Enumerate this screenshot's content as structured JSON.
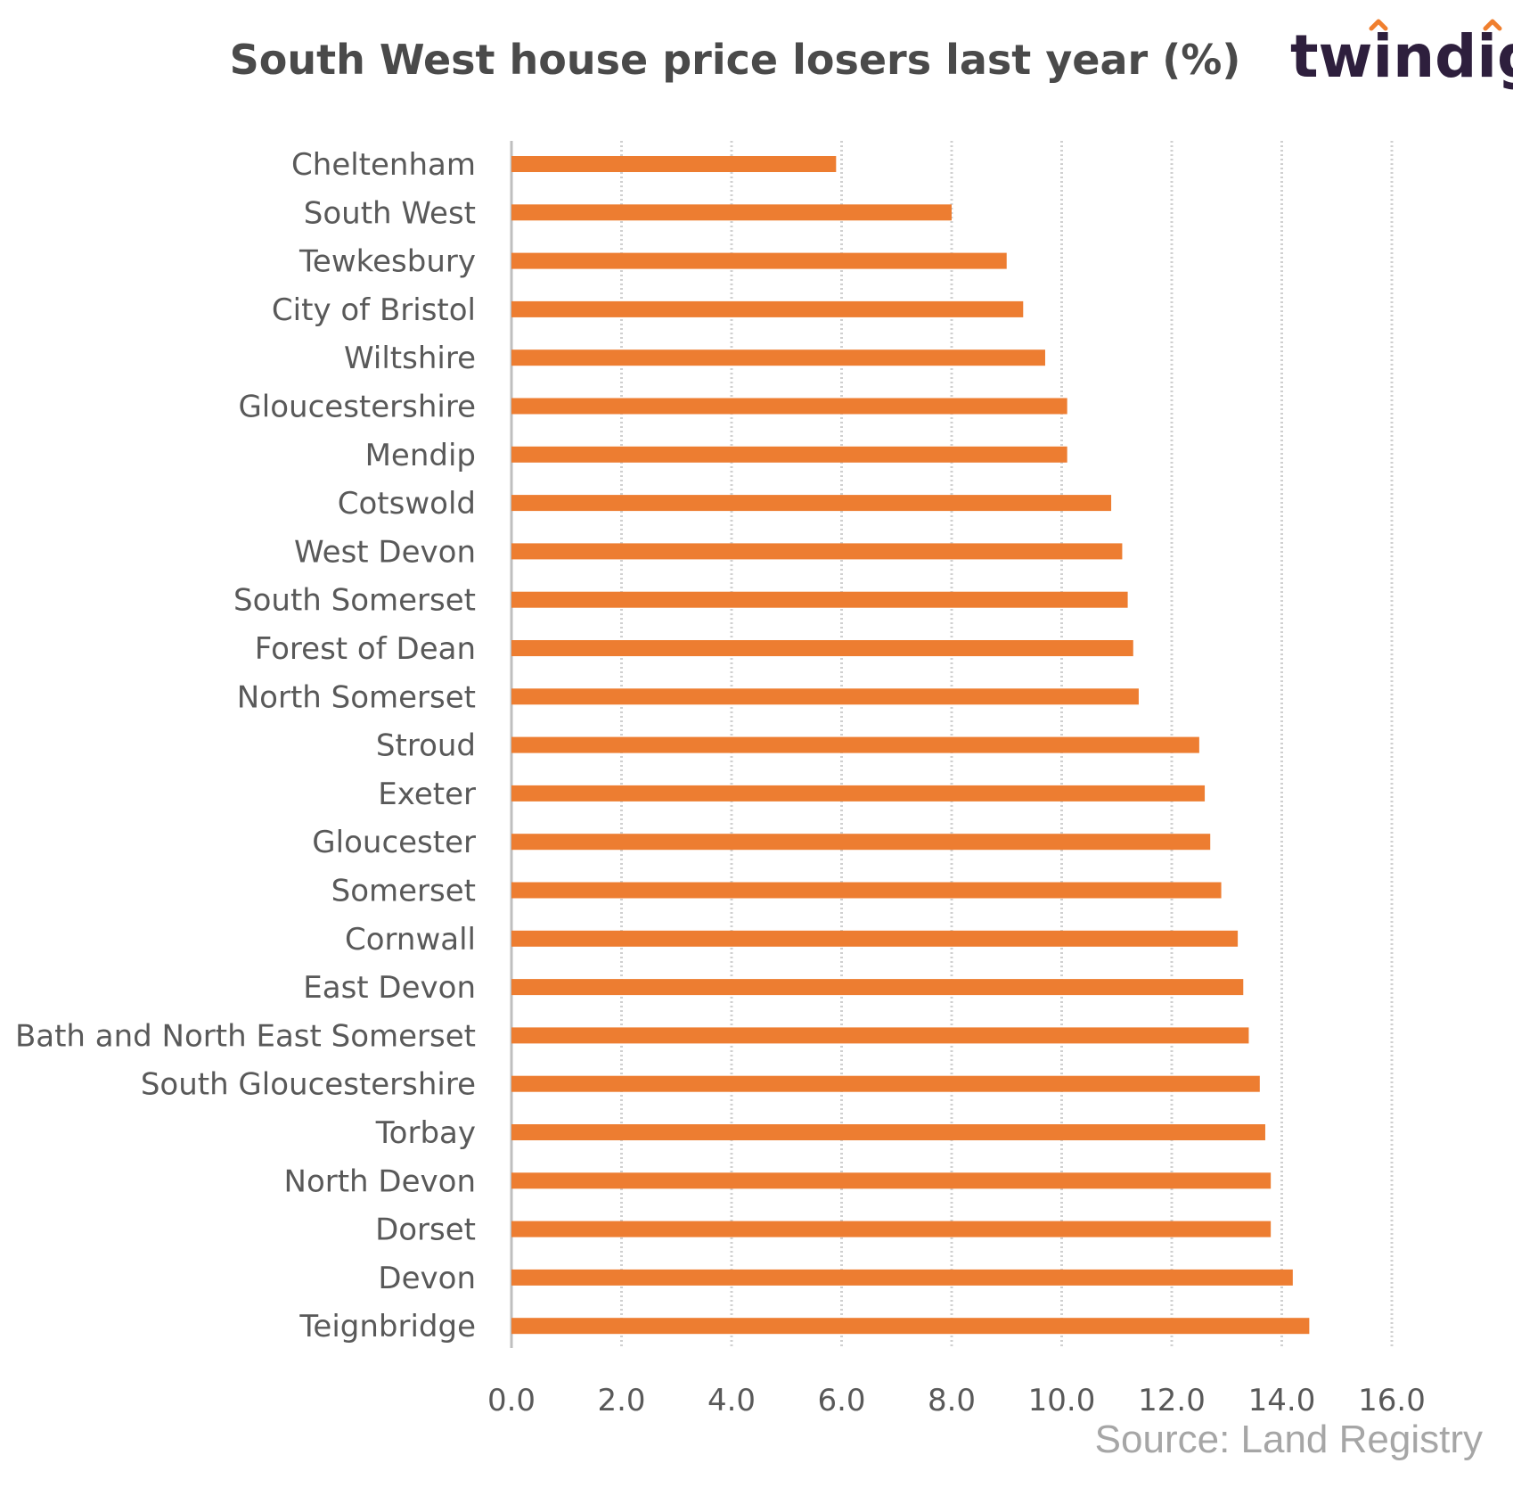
{
  "brand": {
    "name": "twindig",
    "accent_color": "#f07f2e",
    "text_color": "#2e1f3d"
  },
  "source": "Source: Land Registry",
  "chart_data": {
    "type": "bar",
    "orientation": "horizontal",
    "title": "South West house price losers last year (%)",
    "xlabel": "",
    "ylabel": "",
    "xlim": [
      0,
      16
    ],
    "x_ticks": [
      "0.0",
      "2.0",
      "4.0",
      "6.0",
      "8.0",
      "10.0",
      "12.0",
      "14.0",
      "16.0"
    ],
    "grid": "vertical",
    "bar_color": "#ed7d31",
    "categories": [
      "Cheltenham",
      "South West",
      "Tewkesbury",
      "City of Bristol",
      "Wiltshire",
      "Gloucestershire",
      "Mendip",
      "Cotswold",
      "West Devon",
      "South Somerset",
      "Forest of Dean",
      "North Somerset",
      "Stroud",
      "Exeter",
      "Gloucester",
      "Somerset",
      "Cornwall",
      "East Devon",
      "Bath and North East Somerset",
      "South Gloucestershire",
      "Torbay",
      "North Devon",
      "Dorset",
      "Devon",
      "Teignbridge"
    ],
    "values": [
      5.9,
      8.0,
      9.0,
      9.3,
      9.7,
      10.1,
      10.1,
      10.9,
      11.1,
      11.2,
      11.3,
      11.4,
      12.5,
      12.6,
      12.7,
      12.9,
      13.2,
      13.3,
      13.4,
      13.6,
      13.7,
      13.8,
      13.8,
      14.2,
      14.5
    ]
  }
}
